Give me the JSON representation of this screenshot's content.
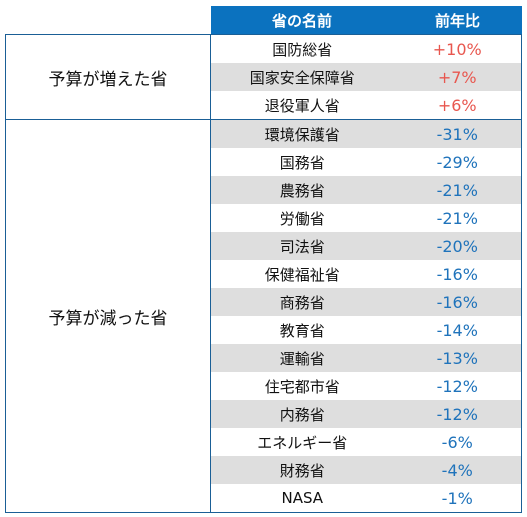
{
  "header": {
    "col1": "",
    "col2": "省の名前",
    "col3": "前年比"
  },
  "groups": [
    {
      "label": "予算が増えた省",
      "rows": [
        {
          "name": "国防総省",
          "change": "+10%"
        },
        {
          "name": "国家安全保障省",
          "change": "+7%"
        },
        {
          "name": "退役軍人省",
          "change": "+6%"
        }
      ]
    },
    {
      "label": "予算が減った省",
      "rows": [
        {
          "name": "環境保護省",
          "change": "-31%"
        },
        {
          "name": "国務省",
          "change": "-29%"
        },
        {
          "name": "農務省",
          "change": "-21%"
        },
        {
          "name": "労働省",
          "change": "-21%"
        },
        {
          "name": "司法省",
          "change": "-20%"
        },
        {
          "name": "保健福祉省",
          "change": "-16%"
        },
        {
          "name": "商務省",
          "change": "-16%"
        },
        {
          "name": "教育省",
          "change": "-14%"
        },
        {
          "name": "運輸省",
          "change": "-13%"
        },
        {
          "name": "住宅都市省",
          "change": "-12%"
        },
        {
          "name": "内務省",
          "change": "-12%"
        },
        {
          "name": "エネルギー省",
          "change": "-6%"
        },
        {
          "name": "財務省",
          "change": "-4%"
        },
        {
          "name": "NASA",
          "change": "-1%"
        }
      ]
    }
  ],
  "colors": {
    "header_bg": "#0b72bf",
    "increase": "#e8574f",
    "decrease": "#1f73bb",
    "shade": "#dedede"
  }
}
